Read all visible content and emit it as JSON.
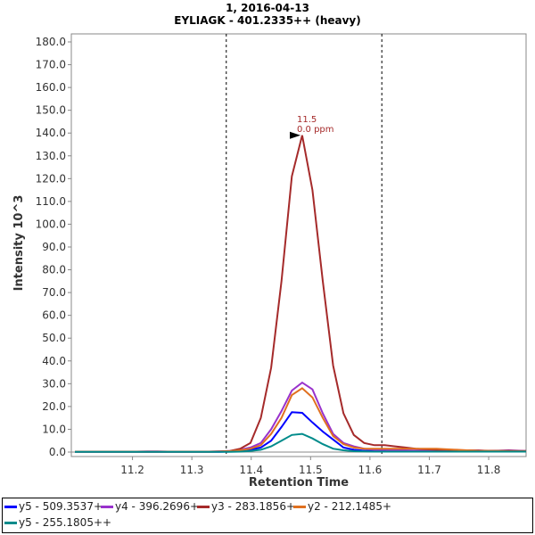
{
  "title": "1, 2016-04-13",
  "subtitle": "EYLIAGK - 401.2335++ (heavy)",
  "chart_data": {
    "type": "line",
    "title": "1, 2016-04-13",
    "subtitle": "EYLIAGK - 401.2335++ (heavy)",
    "xlabel": "Retention Time",
    "ylabel": "Intensity  10^3",
    "xlim": [
      11.097,
      11.863
    ],
    "ylim": [
      0,
      180
    ],
    "xticks": [
      "11.2",
      "11.3",
      "11.4",
      "11.5",
      "11.6",
      "11.7",
      "11.8"
    ],
    "yticks": [
      "0.0",
      "10.0",
      "20.0",
      "30.0",
      "40.0",
      "50.0",
      "60.0",
      "70.0",
      "80.0",
      "90.0",
      "100.0",
      "110.0",
      "120.0",
      "130.0",
      "140.0",
      "150.0",
      "160.0",
      "170.0",
      "180.0"
    ],
    "x_start": 11.103,
    "x_step": 0.0174,
    "boundaries": [
      11.358,
      11.62
    ],
    "annotation": {
      "x": 11.486,
      "y": 139,
      "line1": "11.5",
      "line2": "0.0 ppm",
      "color": "#a52a2a"
    },
    "series": [
      {
        "name": "y5 - 509.3537+",
        "color": "#0000ff",
        "values": [
          0.1,
          0.1,
          0.1,
          0.1,
          0.1,
          0.1,
          0.1,
          0.1,
          0.1,
          0.1,
          0.1,
          0.1,
          0.1,
          0.1,
          0.1,
          0.2,
          0.3,
          1,
          2,
          5,
          11,
          17.5,
          17.2,
          13,
          9,
          5.5,
          2,
          1,
          0.6,
          0.5,
          0.5,
          0.4,
          0.4,
          0.4,
          0.3,
          0.3,
          0.3,
          0.3,
          0.3,
          0.3,
          0.3,
          0.3,
          0.3,
          0.3,
          0.3
        ]
      },
      {
        "name": "y4 - 396.2696+",
        "color": "#9932cc",
        "values": [
          0.2,
          0.2,
          0.2,
          0.2,
          0.2,
          0.2,
          0.2,
          0.3,
          0.3,
          0.2,
          0.2,
          0.2,
          0.2,
          0.2,
          0.3,
          0.5,
          1,
          2,
          4,
          10,
          18,
          27,
          30.5,
          27.5,
          17,
          8,
          4,
          2.5,
          1.5,
          1,
          1,
          0.8,
          0.8,
          0.7,
          0.6,
          0.6,
          0.6,
          0.5,
          0.6,
          0.8,
          0.5,
          0.6,
          0.8,
          0.6,
          0.5
        ]
      },
      {
        "name": "y3 - 283.1856+",
        "color": "#a52a2a",
        "values": [
          0.2,
          0.2,
          0.2,
          0.2,
          0.2,
          0.2,
          0.2,
          0.2,
          0.2,
          0.2,
          0.2,
          0.2,
          0.2,
          0.2,
          0.3,
          0.5,
          1.5,
          4,
          15,
          37,
          75,
          121,
          139,
          115,
          75,
          38,
          17,
          7.5,
          4,
          3,
          3,
          2.5,
          2,
          1.5,
          1.2,
          1,
          1,
          0.8,
          0.8,
          0.7,
          0.6,
          0.6,
          0.6,
          0.5,
          0.5
        ]
      },
      {
        "name": "y2 - 212.1485+",
        "color": "#e07020",
        "values": [
          0.1,
          0.1,
          0.1,
          0.1,
          0.1,
          0.1,
          0.1,
          0.1,
          0.1,
          0.1,
          0.1,
          0.1,
          0.1,
          0.1,
          0.2,
          0.4,
          0.8,
          1.5,
          3,
          8,
          15,
          25,
          28,
          24,
          15,
          7,
          3.5,
          2,
          1.5,
          1.5,
          1.5,
          1.5,
          1.5,
          1.5,
          1.5,
          1.5,
          1.2,
          1,
          0.8,
          0.6,
          0.5,
          0.4,
          0.4,
          0.3,
          0.3
        ]
      },
      {
        "name": "y5 - 255.1805++",
        "color": "#008b8b",
        "values": [
          0.1,
          0.1,
          0.1,
          0.1,
          0.1,
          0.1,
          0.1,
          0.1,
          0.1,
          0.1,
          0.1,
          0.1,
          0.1,
          0.1,
          0.1,
          0.1,
          0.2,
          0.5,
          1,
          2.5,
          5,
          7.5,
          8,
          6,
          3.5,
          1.5,
          0.8,
          0.4,
          0.3,
          0.2,
          0.2,
          0.2,
          0.2,
          0.2,
          0.2,
          0.2,
          0.2,
          0.2,
          0.2,
          0.2,
          0.2,
          0.2,
          0.2,
          0.2,
          0.2
        ]
      }
    ]
  },
  "legend": [
    "y5 - 509.3537+",
    "y4 - 396.2696+",
    "y3 - 283.1856+",
    "y2 - 212.1485+",
    "y5 - 255.1805++"
  ]
}
